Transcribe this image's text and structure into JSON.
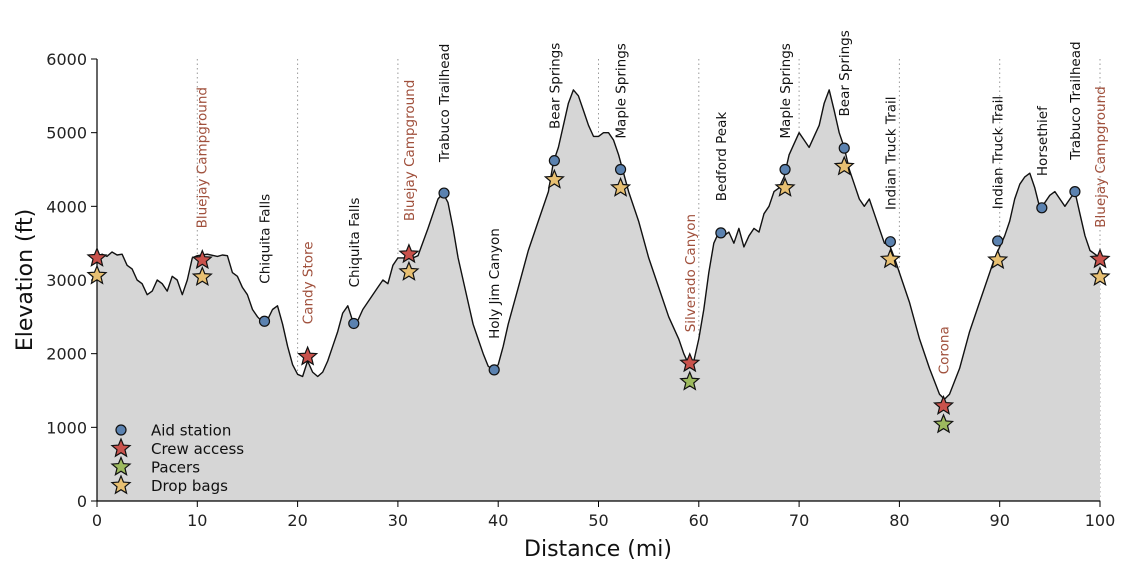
{
  "chart_data": {
    "type": "area",
    "xlabel": "Distance (mi)",
    "ylabel": "Elevation (ft)",
    "xlim": [
      0,
      100
    ],
    "ylim": [
      0,
      6000
    ],
    "xticks": [
      0,
      10,
      20,
      30,
      40,
      50,
      60,
      70,
      80,
      90,
      100
    ],
    "yticks": [
      0,
      1000,
      2000,
      3000,
      4000,
      5000,
      6000
    ],
    "colors": {
      "fill": "#d6d6d6",
      "line": "#111111",
      "aid": "#5b82b0",
      "crew": "#c9524c",
      "pacers": "#9dba5e",
      "drop": "#e8c072",
      "label_dark": "#111111",
      "label_red": "#a0503c"
    },
    "profile": [
      [
        0,
        3300
      ],
      [
        0.5,
        3350
      ],
      [
        1,
        3320
      ],
      [
        1.5,
        3380
      ],
      [
        2,
        3340
      ],
      [
        2.5,
        3350
      ],
      [
        3,
        3200
      ],
      [
        3.5,
        3150
      ],
      [
        4,
        3000
      ],
      [
        4.5,
        2950
      ],
      [
        5,
        2800
      ],
      [
        5.5,
        2850
      ],
      [
        6,
        3000
      ],
      [
        6.5,
        2950
      ],
      [
        7,
        2850
      ],
      [
        7.5,
        3050
      ],
      [
        8,
        3000
      ],
      [
        8.5,
        2800
      ],
      [
        9,
        3000
      ],
      [
        9.5,
        3300
      ],
      [
        10,
        3330
      ],
      [
        11,
        3350
      ],
      [
        12,
        3320
      ],
      [
        12.5,
        3340
      ],
      [
        13,
        3330
      ],
      [
        13.5,
        3100
      ],
      [
        14,
        3050
      ],
      [
        14.5,
        2900
      ],
      [
        15,
        2800
      ],
      [
        15.5,
        2600
      ],
      [
        16,
        2500
      ],
      [
        16.5,
        2430
      ],
      [
        17,
        2460
      ],
      [
        17.5,
        2600
      ],
      [
        18,
        2650
      ],
      [
        18.5,
        2400
      ],
      [
        19,
        2100
      ],
      [
        19.5,
        1850
      ],
      [
        20,
        1720
      ],
      [
        20.5,
        1690
      ],
      [
        21,
        1900
      ],
      [
        21.5,
        1750
      ],
      [
        22,
        1690
      ],
      [
        22.5,
        1750
      ],
      [
        23,
        1900
      ],
      [
        23.5,
        2100
      ],
      [
        24,
        2300
      ],
      [
        24.5,
        2550
      ],
      [
        25,
        2650
      ],
      [
        25.5,
        2440
      ],
      [
        26,
        2450
      ],
      [
        26.5,
        2600
      ],
      [
        27,
        2700
      ],
      [
        28,
        2900
      ],
      [
        28.5,
        3000
      ],
      [
        29,
        2950
      ],
      [
        29.5,
        3200
      ],
      [
        30,
        3300
      ],
      [
        31,
        3300
      ],
      [
        31.5,
        3300
      ],
      [
        32,
        3330
      ],
      [
        33,
        3700
      ],
      [
        33.5,
        3900
      ],
      [
        34,
        4100
      ],
      [
        34.5,
        4180
      ],
      [
        35,
        4050
      ],
      [
        35.5,
        3700
      ],
      [
        36,
        3300
      ],
      [
        36.5,
        3000
      ],
      [
        37,
        2700
      ],
      [
        37.5,
        2400
      ],
      [
        38,
        2200
      ],
      [
        38.5,
        2000
      ],
      [
        39,
        1830
      ],
      [
        39.5,
        1780
      ],
      [
        40,
        1850
      ],
      [
        40.5,
        2100
      ],
      [
        41,
        2400
      ],
      [
        42,
        2900
      ],
      [
        43,
        3400
      ],
      [
        44,
        3800
      ],
      [
        45,
        4200
      ],
      [
        45.5,
        4600
      ],
      [
        46,
        4800
      ],
      [
        46.5,
        5100
      ],
      [
        47,
        5400
      ],
      [
        47.5,
        5580
      ],
      [
        48,
        5500
      ],
      [
        48.5,
        5300
      ],
      [
        49,
        5100
      ],
      [
        49.5,
        4950
      ],
      [
        50,
        4950
      ],
      [
        50.5,
        5000
      ],
      [
        51,
        5000
      ],
      [
        51.5,
        4900
      ],
      [
        52,
        4700
      ],
      [
        52.5,
        4450
      ],
      [
        53,
        4200
      ],
      [
        54,
        3800
      ],
      [
        55,
        3300
      ],
      [
        56,
        2900
      ],
      [
        57,
        2500
      ],
      [
        58,
        2200
      ],
      [
        58.5,
        2000
      ],
      [
        59,
        1850
      ],
      [
        59.5,
        1900
      ],
      [
        60,
        2200
      ],
      [
        60.5,
        2600
      ],
      [
        61,
        3100
      ],
      [
        61.5,
        3500
      ],
      [
        62,
        3650
      ],
      [
        62.5,
        3600
      ],
      [
        63,
        3650
      ],
      [
        63.5,
        3500
      ],
      [
        64,
        3700
      ],
      [
        64.5,
        3450
      ],
      [
        65,
        3600
      ],
      [
        65.5,
        3700
      ],
      [
        66,
        3650
      ],
      [
        66.5,
        3900
      ],
      [
        67,
        4000
      ],
      [
        67.5,
        4200
      ],
      [
        68,
        4250
      ],
      [
        68.5,
        4400
      ],
      [
        69,
        4700
      ],
      [
        69.5,
        4850
      ],
      [
        70,
        5000
      ],
      [
        70.5,
        4900
      ],
      [
        71,
        4800
      ],
      [
        71.5,
        4950
      ],
      [
        72,
        5100
      ],
      [
        72.5,
        5400
      ],
      [
        73,
        5580
      ],
      [
        73.5,
        5300
      ],
      [
        74,
        5000
      ],
      [
        74.5,
        4800
      ],
      [
        75,
        4500
      ],
      [
        75.5,
        4300
      ],
      [
        76,
        4100
      ],
      [
        76.5,
        4000
      ],
      [
        77,
        4100
      ],
      [
        77.5,
        3900
      ],
      [
        78,
        3700
      ],
      [
        78.5,
        3500
      ],
      [
        79,
        3480
      ],
      [
        79.5,
        3300
      ],
      [
        80,
        3100
      ],
      [
        81,
        2700
      ],
      [
        82,
        2200
      ],
      [
        83,
        1800
      ],
      [
        84,
        1450
      ],
      [
        84.5,
        1380
      ],
      [
        85,
        1450
      ],
      [
        86,
        1800
      ],
      [
        87,
        2300
      ],
      [
        88,
        2700
      ],
      [
        89,
        3100
      ],
      [
        89.5,
        3300
      ],
      [
        90,
        3450
      ],
      [
        90.5,
        3600
      ],
      [
        91,
        3800
      ],
      [
        91.5,
        4100
      ],
      [
        92,
        4300
      ],
      [
        92.5,
        4400
      ],
      [
        93,
        4450
      ],
      [
        93.5,
        4250
      ],
      [
        94,
        3980
      ],
      [
        94.5,
        4050
      ],
      [
        95,
        4150
      ],
      [
        95.5,
        4200
      ],
      [
        96,
        4100
      ],
      [
        96.5,
        4000
      ],
      [
        97,
        4100
      ],
      [
        97.5,
        4200
      ],
      [
        98,
        3900
      ],
      [
        98.5,
        3600
      ],
      [
        99,
        3400
      ],
      [
        99.5,
        3350
      ],
      [
        100,
        3300
      ]
    ],
    "aid_stations": [
      [
        16.7,
        2440
      ],
      [
        25.6,
        2410
      ],
      [
        34.6,
        4180
      ],
      [
        39.6,
        1780
      ],
      [
        45.6,
        4620
      ],
      [
        52.2,
        4500
      ],
      [
        62.2,
        3640
      ],
      [
        68.6,
        4500
      ],
      [
        74.5,
        4790
      ],
      [
        79.1,
        3520
      ],
      [
        89.8,
        3530
      ],
      [
        94.2,
        3980
      ],
      [
        97.5,
        4200
      ]
    ],
    "crew_access": [
      [
        0,
        3300
      ],
      [
        10.5,
        3270
      ],
      [
        21,
        1960
      ],
      [
        31.1,
        3350
      ],
      [
        59.1,
        1870
      ],
      [
        84.4,
        1290
      ],
      [
        100,
        3280
      ]
    ],
    "pacers": [
      [
        59.1,
        1620
      ],
      [
        84.4,
        1040
      ]
    ],
    "drop_bags": [
      [
        0,
        3060
      ],
      [
        10.5,
        3040
      ],
      [
        31.1,
        3110
      ],
      [
        45.6,
        4360
      ],
      [
        52.2,
        4250
      ],
      [
        68.6,
        4250
      ],
      [
        74.5,
        4540
      ],
      [
        79.1,
        3280
      ],
      [
        89.8,
        3270
      ],
      [
        100,
        3040
      ]
    ],
    "vlines": [
      10,
      20,
      30,
      50,
      60,
      70,
      80,
      90,
      100
    ],
    "labels": [
      {
        "text": "Bluejay Campground",
        "x": 10.4,
        "y": 3700,
        "style": "red"
      },
      {
        "text": "Chiquita Falls",
        "x": 16.7,
        "y": 2950,
        "style": "dark"
      },
      {
        "text": "Candy Store",
        "x": 21,
        "y": 2400,
        "style": "red"
      },
      {
        "text": "Chiquita Falls",
        "x": 25.6,
        "y": 2900,
        "style": "dark"
      },
      {
        "text": "Bluejay Campground",
        "x": 31.1,
        "y": 3800,
        "style": "red"
      },
      {
        "text": "Trabuco Trailhead",
        "x": 34.6,
        "y": 4600,
        "style": "dark"
      },
      {
        "text": "Holy Jim Canyon",
        "x": 39.6,
        "y": 2200,
        "style": "dark"
      },
      {
        "text": "Bear Springs",
        "x": 45.6,
        "y": 5050,
        "style": "dark"
      },
      {
        "text": "Maple Springs",
        "x": 52.2,
        "y": 4920,
        "style": "dark"
      },
      {
        "text": "Silverado Canyon",
        "x": 59.1,
        "y": 2290,
        "style": "red"
      },
      {
        "text": "Bedford Peak",
        "x": 62.2,
        "y": 4070,
        "style": "dark"
      },
      {
        "text": "Maple Springs",
        "x": 68.6,
        "y": 4920,
        "style": "dark"
      },
      {
        "text": "Bear Springs",
        "x": 74.5,
        "y": 5220,
        "style": "dark"
      },
      {
        "text": "Indian Truck Trail",
        "x": 79.1,
        "y": 3950,
        "style": "dark"
      },
      {
        "text": "Corona",
        "x": 84.4,
        "y": 1720,
        "style": "red"
      },
      {
        "text": "Indian Truck Trail",
        "x": 89.8,
        "y": 3960,
        "style": "dark"
      },
      {
        "text": "Horsethief",
        "x": 94.2,
        "y": 4410,
        "style": "dark"
      },
      {
        "text": "Trabuco Trailhead",
        "x": 97.5,
        "y": 4630,
        "style": "dark"
      },
      {
        "text": "Bluejay Campground",
        "x": 100,
        "y": 3710,
        "style": "red"
      }
    ],
    "legend": {
      "placement": "lower-left",
      "entries": [
        {
          "key": "aid",
          "name": "Aid station",
          "marker": "circle"
        },
        {
          "key": "crew",
          "name": "Crew access",
          "marker": "star"
        },
        {
          "key": "pacers",
          "name": "Pacers",
          "marker": "star"
        },
        {
          "key": "drop",
          "name": "Drop bags",
          "marker": "star"
        }
      ]
    }
  }
}
